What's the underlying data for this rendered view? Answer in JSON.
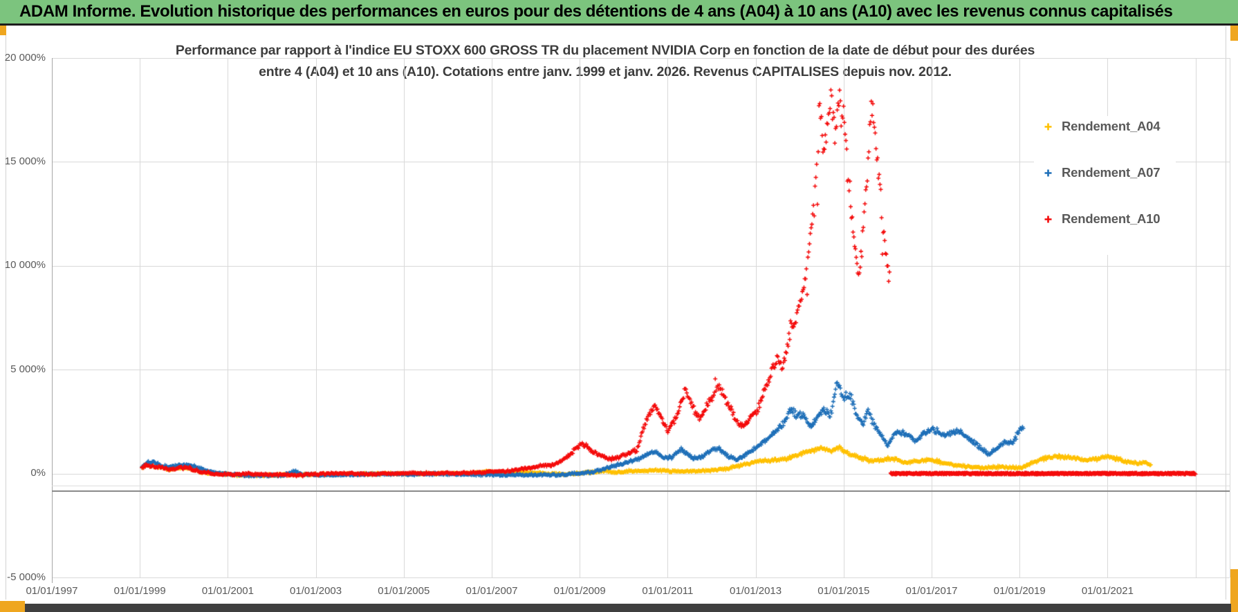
{
  "window": {
    "title": "ADAM Informe. Evolution historique des performances en euros pour des détentions de 4 ans (A04) à 10 ans (A10) avec les revenus connus capitalisés"
  },
  "chart": {
    "title_line1": "Performance par rapport à l'indice EU STOXX 600 GROSS TR  du placement NVIDIA Corp en fonction de la date de début pour des durées",
    "title_line2": "entre 4 (A04) et 10 ans (A10). Cotations entre janv. 1999 et janv. 2026. Revenus CAPITALISES depuis nov. 2012.",
    "y_axis": {
      "labels": [
        "20 000%",
        "15 000%",
        "10 000%",
        "5 000%",
        "0%",
        "-5 000%"
      ],
      "values": [
        20000,
        15000,
        10000,
        5000,
        0,
        -5000
      ]
    },
    "x_axis": {
      "labels": [
        "01/01/1997",
        "01/01/1999",
        "01/01/2001",
        "01/01/2003",
        "01/01/2005",
        "01/01/2007",
        "01/01/2009",
        "01/01/2011",
        "01/01/2013",
        "01/01/2015",
        "01/01/2017",
        "01/01/2019",
        "01/01/2021"
      ],
      "years": [
        1997,
        1999,
        2001,
        2003,
        2005,
        2007,
        2009,
        2011,
        2013,
        2015,
        2017,
        2019,
        2021
      ],
      "gridline_years_end": 2023
    },
    "legend": [
      {
        "label": "Rendement_A04",
        "color": "#FFC000"
      },
      {
        "label": "Rendement_A07",
        "color": "#1E6FB8"
      },
      {
        "label": "Rendement_A10",
        "color": "#F40B0B"
      }
    ]
  },
  "colors": {
    "banner_green": "#7CC47E",
    "frame_amber": "#EFA61F",
    "bottom_strip": "#3F3F3F",
    "gridline": "#D9D9D9",
    "axis_text": "#595959",
    "title_text": "#3D3D3D"
  },
  "chart_data": {
    "type": "scatter",
    "marker": "plus",
    "title": "Performance par rapport à l'indice EU STOXX 600 GROSS TR du placement NVIDIA Corp en fonction de la date de début pour des durées entre 4 (A04) et 10 ans (A10). Cotations entre janv. 1999 et janv. 2026. Revenus CAPITALISES depuis nov. 2012.",
    "x_unit": "start_date_decimal_year",
    "y_unit": "performance_percent",
    "x_range": [
      1997,
      2023.2
    ],
    "y_range": [
      -5000,
      20000
    ],
    "y_tick_step": 5000,
    "x_tick_step_years": 2,
    "grid": true,
    "legend_position": "right-overlay",
    "sampling": {
      "step_years": 0.018,
      "jitter_abs": 60,
      "jitter_pct_of_value": 0.045
    },
    "series": [
      {
        "name": "Rendement_A04",
        "color": "#FFC000",
        "seed": 11,
        "spike_threshold": 999999,
        "spike_chance": 0,
        "spike_scale": 0,
        "anchors": [
          [
            1999.05,
            280
          ],
          [
            1999.15,
            430
          ],
          [
            1999.3,
            380
          ],
          [
            1999.5,
            300
          ],
          [
            1999.7,
            220
          ],
          [
            1999.9,
            300
          ],
          [
            2000.1,
            240
          ],
          [
            2000.4,
            60
          ],
          [
            2000.7,
            -40
          ],
          [
            2001.2,
            -60
          ],
          [
            2001.8,
            -80
          ],
          [
            2002.4,
            -60
          ],
          [
            2003.0,
            -40
          ],
          [
            2003.6,
            -20
          ],
          [
            2004.2,
            -30
          ],
          [
            2004.8,
            -10
          ],
          [
            2005.4,
            0
          ],
          [
            2006.0,
            10
          ],
          [
            2006.5,
            30
          ],
          [
            2006.9,
            90
          ],
          [
            2007.2,
            60
          ],
          [
            2007.5,
            80
          ],
          [
            2007.8,
            40
          ],
          [
            2008.2,
            0
          ],
          [
            2008.6,
            -20
          ],
          [
            2009.0,
            20
          ],
          [
            2009.3,
            70
          ],
          [
            2009.6,
            120
          ],
          [
            2010.0,
            100
          ],
          [
            2010.4,
            150
          ],
          [
            2010.8,
            180
          ],
          [
            2011.2,
            120
          ],
          [
            2011.6,
            100
          ],
          [
            2012.0,
            150
          ],
          [
            2012.3,
            210
          ],
          [
            2012.6,
            350
          ],
          [
            2012.9,
            500
          ],
          [
            2013.1,
            600
          ],
          [
            2013.4,
            620
          ],
          [
            2013.7,
            680
          ],
          [
            2014.0,
            900
          ],
          [
            2014.2,
            1060
          ],
          [
            2014.5,
            1210
          ],
          [
            2014.7,
            1150
          ],
          [
            2014.9,
            1260
          ],
          [
            2015.1,
            950
          ],
          [
            2015.3,
            840
          ],
          [
            2015.6,
            600
          ],
          [
            2015.9,
            700
          ],
          [
            2016.1,
            780
          ],
          [
            2016.4,
            550
          ],
          [
            2016.7,
            620
          ],
          [
            2017.0,
            720
          ],
          [
            2017.3,
            520
          ],
          [
            2017.6,
            400
          ],
          [
            2017.9,
            340
          ],
          [
            2018.2,
            300
          ],
          [
            2018.5,
            330
          ],
          [
            2018.8,
            280
          ],
          [
            2019.0,
            260
          ],
          [
            2019.2,
            420
          ],
          [
            2019.5,
            720
          ],
          [
            2019.8,
            860
          ],
          [
            2020.0,
            800
          ],
          [
            2020.3,
            760
          ],
          [
            2020.5,
            600
          ],
          [
            2020.8,
            660
          ],
          [
            2021.0,
            800
          ],
          [
            2021.2,
            710
          ],
          [
            2021.5,
            500
          ],
          [
            2021.7,
            460
          ],
          [
            2021.85,
            530
          ],
          [
            2022.0,
            350
          ]
        ]
      },
      {
        "name": "Rendement_A07",
        "color": "#1E6FB8",
        "seed": 23,
        "spike_threshold": 2500,
        "spike_chance": 0.08,
        "spike_scale": 0.1,
        "anchors": [
          [
            1999.05,
            320
          ],
          [
            1999.15,
            500
          ],
          [
            1999.3,
            550
          ],
          [
            1999.5,
            380
          ],
          [
            1999.7,
            300
          ],
          [
            1999.9,
            430
          ],
          [
            2000.1,
            420
          ],
          [
            2000.3,
            300
          ],
          [
            2000.6,
            100
          ],
          [
            2000.9,
            0
          ],
          [
            2001.3,
            -60
          ],
          [
            2001.8,
            -90
          ],
          [
            2002.3,
            -70
          ],
          [
            2002.5,
            120
          ],
          [
            2002.7,
            -30
          ],
          [
            2003.2,
            -60
          ],
          [
            2003.7,
            -40
          ],
          [
            2004.2,
            -30
          ],
          [
            2004.8,
            -20
          ],
          [
            2005.4,
            -10
          ],
          [
            2006.0,
            -20
          ],
          [
            2006.6,
            -40
          ],
          [
            2007.2,
            -60
          ],
          [
            2007.8,
            -80
          ],
          [
            2008.3,
            -60
          ],
          [
            2008.8,
            -30
          ],
          [
            2009.2,
            40
          ],
          [
            2009.5,
            200
          ],
          [
            2009.8,
            400
          ],
          [
            2010.1,
            550
          ],
          [
            2010.4,
            750
          ],
          [
            2010.7,
            1080
          ],
          [
            2010.9,
            800
          ],
          [
            2011.1,
            750
          ],
          [
            2011.3,
            1180
          ],
          [
            2011.45,
            900
          ],
          [
            2011.6,
            750
          ],
          [
            2011.8,
            850
          ],
          [
            2012.0,
            1150
          ],
          [
            2012.15,
            1230
          ],
          [
            2012.35,
            850
          ],
          [
            2012.55,
            650
          ],
          [
            2012.75,
            800
          ],
          [
            2012.95,
            1100
          ],
          [
            2013.15,
            1400
          ],
          [
            2013.4,
            1900
          ],
          [
            2013.6,
            2300
          ],
          [
            2013.8,
            3100
          ],
          [
            2013.95,
            2750
          ],
          [
            2014.1,
            2850
          ],
          [
            2014.25,
            2150
          ],
          [
            2014.4,
            2650
          ],
          [
            2014.55,
            3050
          ],
          [
            2014.7,
            2800
          ],
          [
            2014.85,
            4350
          ],
          [
            2015.0,
            3600
          ],
          [
            2015.15,
            3800
          ],
          [
            2015.3,
            2700
          ],
          [
            2015.45,
            2300
          ],
          [
            2015.55,
            3000
          ],
          [
            2015.7,
            2300
          ],
          [
            2015.85,
            1800
          ],
          [
            2016.0,
            1350
          ],
          [
            2016.15,
            1900
          ],
          [
            2016.3,
            2050
          ],
          [
            2016.5,
            1800
          ],
          [
            2016.65,
            1550
          ],
          [
            2016.8,
            1900
          ],
          [
            2017.0,
            2200
          ],
          [
            2017.2,
            2000
          ],
          [
            2017.4,
            1900
          ],
          [
            2017.6,
            2100
          ],
          [
            2017.8,
            1800
          ],
          [
            2018.0,
            1500
          ],
          [
            2018.3,
            950
          ],
          [
            2018.5,
            1300
          ],
          [
            2018.7,
            1600
          ],
          [
            2018.85,
            1500
          ],
          [
            2018.95,
            2000
          ],
          [
            2019.1,
            2250
          ]
        ]
      },
      {
        "name": "Rendement_A10",
        "color": "#F40B0B",
        "seed": 47,
        "spike_threshold": 4000,
        "spike_chance": 0.1,
        "spike_scale": 0.16,
        "anchors": [
          [
            1999.05,
            300
          ],
          [
            1999.15,
            420
          ],
          [
            1999.3,
            350
          ],
          [
            1999.5,
            280
          ],
          [
            1999.7,
            200
          ],
          [
            1999.9,
            320
          ],
          [
            2000.1,
            280
          ],
          [
            2000.4,
            100
          ],
          [
            2000.7,
            0
          ],
          [
            2001.2,
            -30
          ],
          [
            2001.8,
            -50
          ],
          [
            2002.4,
            -60
          ],
          [
            2003.0,
            -30
          ],
          [
            2003.6,
            -10
          ],
          [
            2004.2,
            0
          ],
          [
            2004.8,
            10
          ],
          [
            2005.4,
            0
          ],
          [
            2006.0,
            20
          ],
          [
            2006.6,
            40
          ],
          [
            2007.2,
            100
          ],
          [
            2007.6,
            200
          ],
          [
            2008.0,
            350
          ],
          [
            2008.4,
            400
          ],
          [
            2008.7,
            800
          ],
          [
            2008.9,
            1200
          ],
          [
            2009.05,
            1500
          ],
          [
            2009.2,
            1250
          ],
          [
            2009.35,
            1000
          ],
          [
            2009.5,
            850
          ],
          [
            2009.7,
            700
          ],
          [
            2009.9,
            800
          ],
          [
            2010.1,
            950
          ],
          [
            2010.3,
            1100
          ],
          [
            2010.5,
            2400
          ],
          [
            2010.7,
            3300
          ],
          [
            2010.85,
            2700
          ],
          [
            2011.0,
            2000
          ],
          [
            2011.2,
            2700
          ],
          [
            2011.4,
            4100
          ],
          [
            2011.55,
            3300
          ],
          [
            2011.7,
            2700
          ],
          [
            2011.85,
            3100
          ],
          [
            2012.0,
            3700
          ],
          [
            2012.15,
            4300
          ],
          [
            2012.3,
            3700
          ],
          [
            2012.45,
            3100
          ],
          [
            2012.6,
            2400
          ],
          [
            2012.75,
            2300
          ],
          [
            2012.9,
            2800
          ],
          [
            2013.05,
            3100
          ],
          [
            2013.2,
            4000
          ],
          [
            2013.35,
            4800
          ],
          [
            2013.5,
            5600
          ],
          [
            2013.6,
            5100
          ],
          [
            2013.75,
            6400
          ],
          [
            2013.9,
            7400
          ],
          [
            2014.05,
            8500
          ],
          [
            2014.15,
            9900
          ],
          [
            2014.25,
            11500
          ],
          [
            2014.35,
            13800
          ],
          [
            2014.45,
            17800
          ],
          [
            2014.55,
            15200
          ],
          [
            2014.65,
            17200
          ],
          [
            2014.72,
            18100
          ],
          [
            2014.8,
            16200
          ],
          [
            2014.88,
            17600
          ],
          [
            2014.95,
            18200
          ],
          [
            2015.02,
            17000
          ],
          [
            2015.1,
            14500
          ],
          [
            2015.18,
            13000
          ],
          [
            2015.26,
            11000
          ],
          [
            2015.34,
            9700
          ],
          [
            2015.42,
            11500
          ],
          [
            2015.5,
            13500
          ],
          [
            2015.58,
            16200
          ],
          [
            2015.64,
            18000
          ],
          [
            2015.7,
            16800
          ],
          [
            2015.76,
            15000
          ],
          [
            2015.82,
            14000
          ],
          [
            2015.88,
            12200
          ],
          [
            2015.94,
            11000
          ],
          [
            2016.0,
            9800
          ],
          [
            2016.05,
            9200
          ]
        ],
        "flat_segment": {
          "from": 2016.07,
          "to": 2023.0,
          "value": 0,
          "jitter": 70,
          "step_years": 0.008
        }
      }
    ]
  }
}
